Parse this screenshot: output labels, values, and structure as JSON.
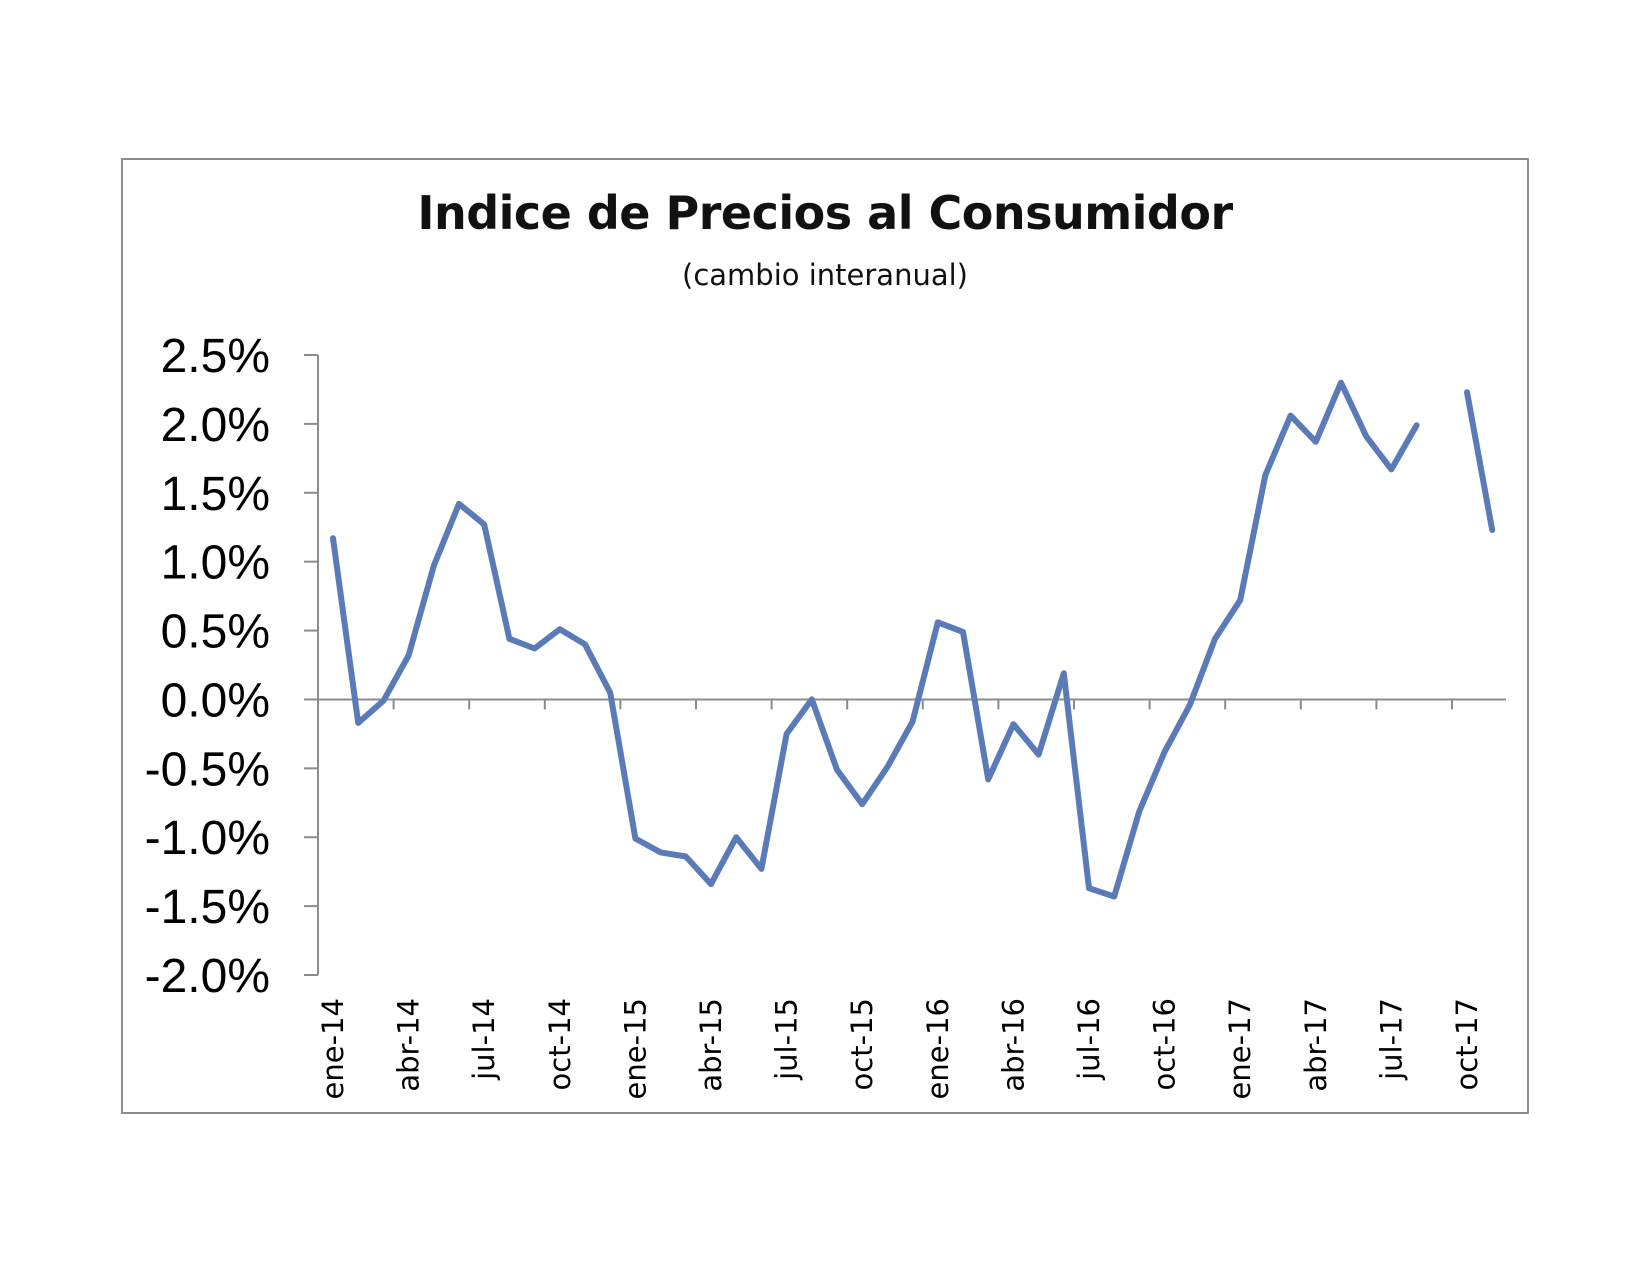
{
  "chart_data": {
    "type": "line",
    "title": "Indice de Precios al Consumidor",
    "subtitle": "(cambio interanual)",
    "xlabel": "",
    "ylabel": "",
    "ylim": [
      -2.0,
      2.5
    ],
    "y_ticks": [
      "2.5%",
      "2.0%",
      "1.5%",
      "1.0%",
      "0.5%",
      "0.0%",
      "-0.5%",
      "-1.0%",
      "-1.5%",
      "-2.0%"
    ],
    "y_tick_values": [
      2.5,
      2.0,
      1.5,
      1.0,
      0.5,
      0.0,
      -0.5,
      -1.0,
      -1.5,
      -2.0
    ],
    "x_tick_labels": [
      "ene-14",
      "abr-14",
      "jul-14",
      "oct-14",
      "ene-15",
      "abr-15",
      "jul-15",
      "oct-15",
      "ene-16",
      "abr-16",
      "jul-16",
      "oct-16",
      "ene-17",
      "abr-17",
      "jul-17",
      "oct-17"
    ],
    "x": [
      "ene-14",
      "feb-14",
      "mar-14",
      "abr-14",
      "may-14",
      "jun-14",
      "jul-14",
      "ago-14",
      "sep-14",
      "oct-14",
      "nov-14",
      "dic-14",
      "ene-15",
      "feb-15",
      "mar-15",
      "abr-15",
      "may-15",
      "jun-15",
      "jul-15",
      "ago-15",
      "sep-15",
      "oct-15",
      "nov-15",
      "dic-15",
      "ene-16",
      "feb-16",
      "mar-16",
      "abr-16",
      "may-16",
      "jun-16",
      "jul-16",
      "ago-16",
      "sep-16",
      "oct-16",
      "nov-16",
      "dic-16",
      "ene-17",
      "feb-17",
      "mar-17",
      "abr-17",
      "may-17",
      "jun-17",
      "jul-17",
      "ago-17",
      "sep-17",
      "oct-17",
      "nov-17"
    ],
    "series": [
      {
        "color": "#5b7bb8",
        "values": [
          1.17,
          -0.17,
          -0.01,
          0.32,
          0.97,
          1.42,
          1.27,
          0.44,
          0.37,
          0.51,
          0.4,
          0.05,
          -1.01,
          -1.11,
          -1.14,
          -1.34,
          -1.0,
          -1.23,
          -0.25,
          0.0,
          -0.51,
          -0.76,
          -0.49,
          -0.16,
          0.56,
          0.49,
          -0.58,
          -0.18,
          -0.4,
          0.19,
          -1.37,
          -1.43,
          -0.81,
          -0.38,
          -0.04,
          0.44,
          0.72,
          1.63,
          2.06,
          1.87,
          2.3,
          1.91,
          1.67,
          1.99,
          null,
          2.23,
          1.23
        ]
      }
    ],
    "grid": false,
    "legend": "none"
  }
}
